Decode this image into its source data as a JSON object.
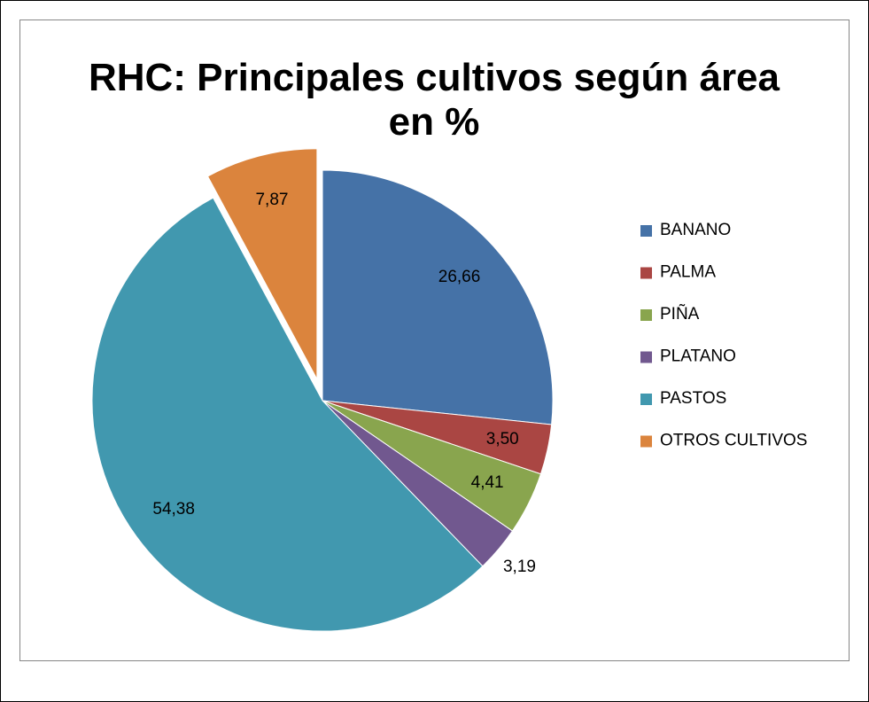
{
  "chart_data": {
    "type": "pie",
    "title": "RHC: Principales cultivos según área en %",
    "categories": [
      "BANANO",
      "PALMA",
      "PIÑA",
      "PLATANO",
      "PASTOS",
      "OTROS CULTIVOS"
    ],
    "values": [
      26.66,
      3.5,
      4.41,
      3.19,
      54.38,
      7.87
    ],
    "value_labels": [
      "26,66",
      "3,50",
      "4,41",
      "3,19",
      "54,38",
      "7,87"
    ],
    "colors": [
      "#4572a7",
      "#aa4643",
      "#89a54e",
      "#71588f",
      "#4198af",
      "#db843d"
    ],
    "exploded": [
      5
    ],
    "legend": "right"
  }
}
